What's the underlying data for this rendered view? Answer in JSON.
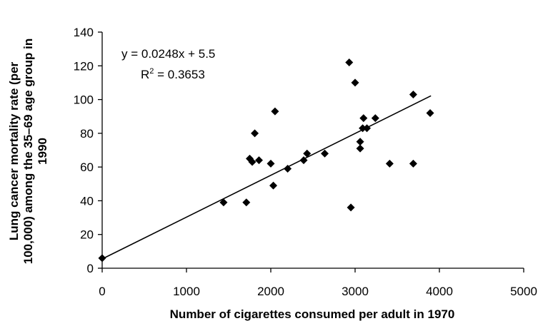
{
  "chart_data": {
    "type": "scatter",
    "xlabel": "Number of cigarettes consumed per adult in 1970",
    "ylabel_lines": [
      "Lung cancer mortality rate (per",
      "100,000)  among the 35–69 age group in",
      "1990"
    ],
    "xlim": [
      0,
      5000
    ],
    "ylim": [
      0,
      140
    ],
    "x_ticks": [
      0,
      1000,
      2000,
      3000,
      4000,
      5000
    ],
    "y_ticks": [
      0,
      20,
      40,
      60,
      80,
      100,
      120,
      140
    ],
    "grid": false,
    "marker": "diamond",
    "marker_color": "#000000",
    "points": [
      {
        "x": 0,
        "y": 6
      },
      {
        "x": 1440,
        "y": 39
      },
      {
        "x": 1710,
        "y": 39
      },
      {
        "x": 1750,
        "y": 65
      },
      {
        "x": 1780,
        "y": 63
      },
      {
        "x": 1810,
        "y": 80
      },
      {
        "x": 1860,
        "y": 64
      },
      {
        "x": 2000,
        "y": 62
      },
      {
        "x": 2030,
        "y": 49
      },
      {
        "x": 2050,
        "y": 93
      },
      {
        "x": 2200,
        "y": 59
      },
      {
        "x": 2390,
        "y": 64
      },
      {
        "x": 2430,
        "y": 68
      },
      {
        "x": 2640,
        "y": 68
      },
      {
        "x": 2930,
        "y": 122
      },
      {
        "x": 2950,
        "y": 36
      },
      {
        "x": 3000,
        "y": 110
      },
      {
        "x": 3060,
        "y": 71
      },
      {
        "x": 3060,
        "y": 75
      },
      {
        "x": 3090,
        "y": 83
      },
      {
        "x": 3100,
        "y": 89
      },
      {
        "x": 3140,
        "y": 83
      },
      {
        "x": 3240,
        "y": 89
      },
      {
        "x": 3410,
        "y": 62
      },
      {
        "x": 3690,
        "y": 62
      },
      {
        "x": 3690,
        "y": 103
      },
      {
        "x": 3890,
        "y": 92
      }
    ],
    "trendline": {
      "slope": 0.0248,
      "intercept": 5.5,
      "x_range": [
        0,
        3900
      ]
    },
    "annotation": {
      "equation": "y = 0.0248x + 5.5",
      "r2_prefix": "R",
      "r2_sup": "2",
      "r2_suffix": " = 0.3653"
    }
  }
}
